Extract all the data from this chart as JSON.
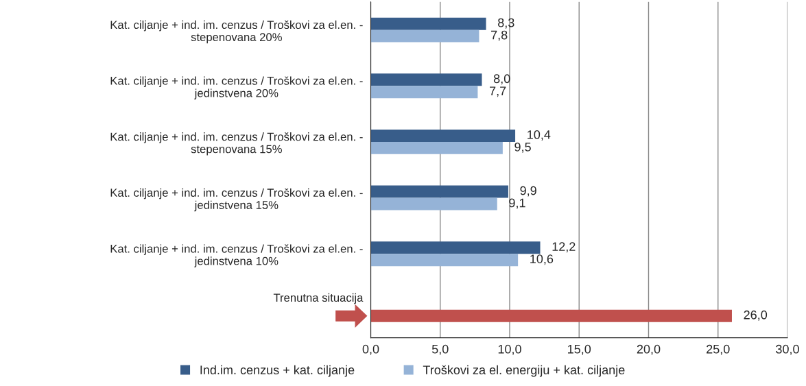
{
  "chart_data": {
    "type": "bar",
    "orientation": "horizontal",
    "categories": [
      "Kat. ciljanje + ind. im. cenzus / Troškovi za el.en. -\nstepenovana 20%",
      "Kat. ciljanje + ind. im. cenzus / Troškovi za el.en. -\njedinstvena 20%",
      "Kat. ciljanje + ind. im. cenzus / Troškovi za el.en. -\nstepenovana 15%",
      "Kat. ciljanje + ind. im. cenzus / Troškovi za el.en. -\njedinstvena 15%",
      "Kat. ciljanje + ind. im. cenzus / Troškovi za el.en. -\njedinstvena 10%",
      "Trenutna situacija"
    ],
    "series": [
      {
        "name": "Ind.im. cenzus + kat. ciljanje",
        "color": "#385d8a",
        "values": [
          8.3,
          8.0,
          10.4,
          9.9,
          12.2,
          null
        ],
        "value_labels": [
          "8,3",
          "8,0",
          "10,4",
          "9,9",
          "12,2",
          null
        ]
      },
      {
        "name": "Troškovi za el. energiju + kat. ciljanje",
        "color": "#95b3d7",
        "colors": [
          "#95b3d7",
          "#95b3d7",
          "#95b3d7",
          "#95b3d7",
          "#95b3d7",
          "#c0504d"
        ],
        "values": [
          7.8,
          7.7,
          9.5,
          9.1,
          10.6,
          26.0
        ],
        "value_labels": [
          "7,8",
          "7,7",
          "9,5",
          "9,1",
          "10,6",
          "26,0"
        ]
      }
    ],
    "xlim": [
      0,
      30
    ],
    "xticks": [
      {
        "value": 0,
        "label": "0,0"
      },
      {
        "value": 5,
        "label": "5,0"
      },
      {
        "value": 10,
        "label": "10,0"
      },
      {
        "value": 15,
        "label": "15,0"
      },
      {
        "value": 20,
        "label": "20,0"
      },
      {
        "value": 25,
        "label": "25,0"
      },
      {
        "value": 30,
        "label": "30,0"
      }
    ],
    "grid": "x",
    "legend": "bottom"
  }
}
